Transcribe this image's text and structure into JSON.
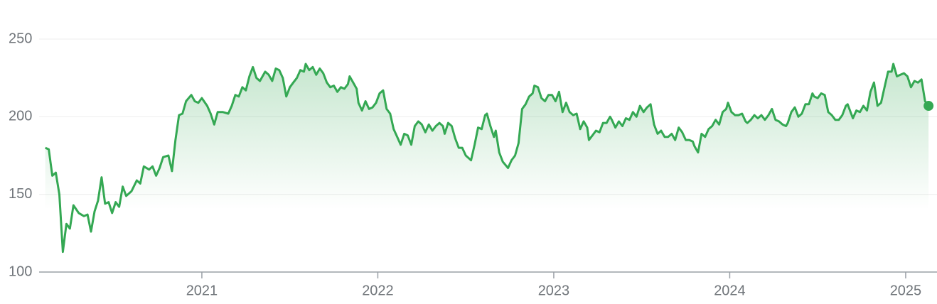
{
  "chart_data": {
    "type": "line",
    "color": "#34a853",
    "xlim": [
      2020.075,
      2025.178
    ],
    "ylim": [
      100,
      250
    ],
    "xticks": [
      2021,
      2022,
      2023,
      2024,
      2025
    ],
    "yticks": [
      100,
      150,
      200,
      250
    ],
    "grid": true,
    "x": [
      2020.11,
      2020.13,
      2020.15,
      2020.17,
      2020.19,
      2020.21,
      2020.23,
      2020.25,
      2020.27,
      2020.3,
      2020.33,
      2020.35,
      2020.37,
      2020.39,
      2020.41,
      2020.43,
      2020.45,
      2020.47,
      2020.49,
      2020.51,
      2020.53,
      2020.55,
      2020.57,
      2020.6,
      2020.63,
      2020.65,
      2020.67,
      2020.7,
      2020.72,
      2020.74,
      2020.76,
      2020.78,
      2020.81,
      2020.83,
      2020.85,
      2020.87,
      2020.89,
      2020.91,
      2020.94,
      2020.96,
      2020.98,
      2021.0,
      2021.03,
      2021.05,
      2021.07,
      2021.09,
      2021.12,
      2021.15,
      2021.17,
      2021.19,
      2021.21,
      2021.23,
      2021.25,
      2021.27,
      2021.29,
      2021.31,
      2021.33,
      2021.36,
      2021.38,
      2021.4,
      2021.42,
      2021.44,
      2021.46,
      2021.48,
      2021.5,
      2021.52,
      2021.54,
      2021.56,
      2021.58,
      2021.59,
      2021.61,
      2021.63,
      2021.65,
      2021.67,
      2021.69,
      2021.71,
      2021.73,
      2021.75,
      2021.77,
      2021.79,
      2021.81,
      2021.83,
      2021.84,
      2021.86,
      2021.88,
      2021.89,
      2021.91,
      2021.93,
      2021.95,
      2021.97,
      2021.99,
      2022.01,
      2022.03,
      2022.05,
      2022.07,
      2022.09,
      2022.11,
      2022.13,
      2022.15,
      2022.17,
      2022.19,
      2022.21,
      2022.23,
      2022.25,
      2022.27,
      2022.29,
      2022.31,
      2022.33,
      2022.35,
      2022.37,
      2022.38,
      2022.4,
      2022.42,
      2022.44,
      2022.46,
      2022.48,
      2022.5,
      2022.52,
      2022.53,
      2022.55,
      2022.57,
      2022.59,
      2022.61,
      2022.62,
      2022.64,
      2022.66,
      2022.67,
      2022.69,
      2022.71,
      2022.74,
      2022.76,
      2022.78,
      2022.8,
      2022.82,
      2022.84,
      2022.86,
      2022.88,
      2022.89,
      2022.91,
      2022.93,
      2022.95,
      2022.97,
      2022.99,
      2023.01,
      2023.03,
      2023.05,
      2023.07,
      2023.09,
      2023.11,
      2023.13,
      2023.15,
      2023.17,
      2023.19,
      2023.2,
      2023.22,
      2023.24,
      2023.26,
      2023.28,
      2023.3,
      2023.32,
      2023.33,
      2023.35,
      2023.37,
      2023.39,
      2023.41,
      2023.43,
      2023.45,
      2023.47,
      2023.49,
      2023.51,
      2023.53,
      2023.55,
      2023.57,
      2023.59,
      2023.61,
      2023.63,
      2023.65,
      2023.67,
      2023.69,
      2023.71,
      2023.73,
      2023.75,
      2023.77,
      2023.79,
      2023.8,
      2023.82,
      2023.84,
      2023.86,
      2023.88,
      2023.9,
      2023.92,
      2023.94,
      2023.96,
      2023.98,
      2023.99,
      2024.01,
      2024.03,
      2024.05,
      2024.07,
      2024.09,
      2024.1,
      2024.12,
      2024.14,
      2024.16,
      2024.18,
      2024.2,
      2024.22,
      2024.24,
      2024.26,
      2024.28,
      2024.3,
      2024.32,
      2024.33,
      2024.35,
      2024.37,
      2024.39,
      2024.41,
      2024.43,
      2024.45,
      2024.47,
      2024.48,
      2024.5,
      2024.52,
      2024.54,
      2024.56,
      2024.58,
      2024.6,
      2024.62,
      2024.64,
      2024.66,
      2024.67,
      2024.7,
      2024.72,
      2024.74,
      2024.76,
      2024.78,
      2024.8,
      2024.82,
      2024.84,
      2024.86,
      2024.88,
      2024.9,
      2024.92,
      2024.93,
      2024.95,
      2024.97,
      2024.99,
      2025.01,
      2025.03,
      2025.05,
      2025.07,
      2025.09,
      2025.11,
      2025.13
    ],
    "values": [
      180,
      179,
      162,
      164,
      150,
      113,
      131,
      128,
      143,
      138,
      136,
      137,
      126,
      139,
      146,
      161,
      144,
      145,
      138,
      145,
      142,
      155,
      149,
      152,
      159,
      157,
      168,
      166,
      168,
      162,
      167,
      174,
      175,
      165,
      185,
      201,
      202,
      210,
      214,
      210,
      209,
      212,
      207,
      202,
      195,
      203,
      203,
      202,
      207,
      214,
      213,
      219,
      217,
      226,
      232,
      225,
      223,
      229,
      227,
      223,
      231,
      230,
      225,
      213,
      219,
      222,
      225,
      230,
      229,
      234,
      230,
      232,
      227,
      231,
      228,
      222,
      219,
      220,
      216,
      219,
      218,
      221,
      226,
      222,
      218,
      209,
      204,
      210,
      205,
      206,
      209,
      215,
      217,
      205,
      202,
      192,
      187,
      182,
      189,
      188,
      182,
      194,
      197,
      195,
      190,
      195,
      191,
      194,
      196,
      194,
      189,
      196,
      194,
      186,
      180,
      180,
      175,
      173,
      172,
      182,
      193,
      192,
      201,
      202,
      194,
      187,
      191,
      177,
      171,
      167,
      172,
      175,
      183,
      205,
      208,
      213,
      215,
      220,
      219,
      212,
      210,
      214,
      214,
      210,
      216,
      203,
      209,
      203,
      201,
      202,
      192,
      197,
      193,
      185,
      188,
      191,
      190,
      196,
      196,
      200,
      198,
      193,
      197,
      194,
      199,
      198,
      203,
      200,
      207,
      203,
      206,
      208,
      195,
      189,
      191,
      187,
      187,
      189,
      185,
      193,
      190,
      185,
      185,
      184,
      181,
      177,
      189,
      187,
      192,
      194,
      198,
      195,
      203,
      205,
      209,
      203,
      201,
      201,
      202,
      197,
      196,
      198,
      201,
      199,
      201,
      198,
      201,
      205,
      198,
      197,
      195,
      194,
      196,
      203,
      206,
      200,
      202,
      208,
      208,
      215,
      213,
      212,
      215,
      214,
      203,
      201,
      198,
      198,
      201,
      207,
      208,
      199,
      204,
      203,
      207,
      204,
      216,
      222,
      207,
      209,
      219,
      229,
      229,
      234,
      226,
      227,
      228,
      226,
      219,
      223,
      222,
      224,
      210,
      207
    ]
  }
}
